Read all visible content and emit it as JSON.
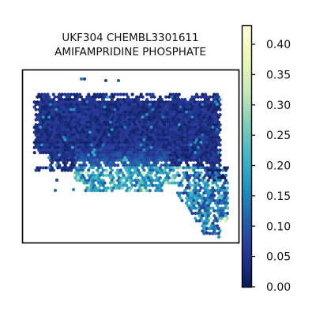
{
  "chart_data": {
    "type": "scatter",
    "subtype": "spatial hexbin map",
    "title_lines": [
      "UKF304 CHEMBL3301611",
      "AMIFAMPRIDINE PHOSPHATE"
    ],
    "colorbar": {
      "colormap": "YlGnBu",
      "range": [
        0.0,
        0.43
      ],
      "ticks": [
        0.0,
        0.05,
        0.1,
        0.15,
        0.2,
        0.25,
        0.3,
        0.35,
        0.4
      ],
      "tick_labels": [
        "0.00",
        "0.05",
        "0.10",
        "0.15",
        "0.20",
        "0.25",
        "0.30",
        "0.35",
        "0.40"
      ]
    },
    "regions": [
      {
        "region": "upper tissue body",
        "value": 0.04
      },
      {
        "region": "lower-middle lobe",
        "value": 0.18
      },
      {
        "region": "right lower lobe",
        "value": 0.14
      },
      {
        "region": "scattered outliers",
        "value": 0.05
      }
    ],
    "max_value": 0.43,
    "axes_visible": false,
    "grid": false
  }
}
